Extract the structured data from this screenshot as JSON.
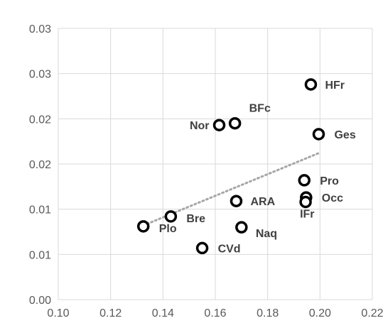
{
  "chart_data": {
    "type": "scatter",
    "title": "",
    "xlabel": "",
    "ylabel": "",
    "xlim": [
      0.1,
      0.22
    ],
    "ylim": [
      0.0,
      0.03
    ],
    "x_ticks": [
      0.1,
      0.12,
      0.14,
      0.16,
      0.18,
      0.2,
      0.22
    ],
    "x_tick_labels": [
      "0.10",
      "0.12",
      "0.14",
      "0.16",
      "0.18",
      "0.20",
      "0.22"
    ],
    "y_ticks": [
      0.0,
      0.005,
      0.01,
      0.015,
      0.02,
      0.025,
      0.03
    ],
    "y_tick_labels": [
      "0.00",
      "0.01",
      "0.01",
      "0.02",
      "0.02",
      "0.03",
      "0.03"
    ],
    "grid": true,
    "legend": "none",
    "marker_color": "#000000",
    "trendline_color": "#a6a6a6",
    "points": [
      {
        "label": "HFr",
        "x": 0.1965,
        "y": 0.0238
      },
      {
        "label": "BFc",
        "x": 0.1675,
        "y": 0.0195
      },
      {
        "label": "Nor",
        "x": 0.1615,
        "y": 0.0193
      },
      {
        "label": "Ges",
        "x": 0.1995,
        "y": 0.0183
      },
      {
        "label": "Pro",
        "x": 0.194,
        "y": 0.0132
      },
      {
        "label": "Occ",
        "x": 0.1947,
        "y": 0.0113
      },
      {
        "label": "IFr",
        "x": 0.1945,
        "y": 0.0108
      },
      {
        "label": "ARA",
        "x": 0.168,
        "y": 0.0109
      },
      {
        "label": "Bre",
        "x": 0.143,
        "y": 0.0092
      },
      {
        "label": "Plo",
        "x": 0.1325,
        "y": 0.0081
      },
      {
        "label": "Naq",
        "x": 0.17,
        "y": 0.008
      },
      {
        "label": "CVd",
        "x": 0.155,
        "y": 0.0057
      }
    ],
    "trendline": {
      "type": "linear",
      "x": [
        0.1325,
        0.1995
      ],
      "y": [
        0.0082,
        0.0162
      ]
    }
  }
}
